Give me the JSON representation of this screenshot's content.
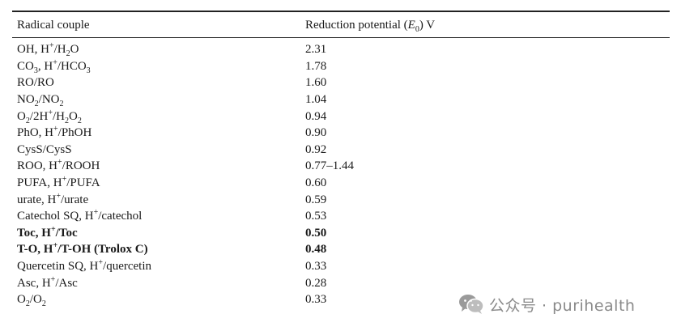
{
  "table": {
    "header": {
      "col1": "Radical couple",
      "col2_pre": "Reduction potential (",
      "col2_sym": "E",
      "col2_sub": "0",
      "col2_post": ") V"
    },
    "rows": [
      {
        "couple": [
          [
            "OH, H"
          ],
          [
            "+",
            "sup"
          ],
          [
            "/H"
          ],
          [
            "2",
            "sub"
          ],
          [
            "O"
          ]
        ],
        "value": "2.31",
        "bold": false
      },
      {
        "couple": [
          [
            "CO"
          ],
          [
            "3",
            "sub"
          ],
          [
            ", H"
          ],
          [
            "+",
            "sup"
          ],
          [
            "/HCO"
          ],
          [
            "3",
            "sub"
          ]
        ],
        "value": "1.78",
        "bold": false
      },
      {
        "couple": [
          [
            "RO/RO"
          ]
        ],
        "value": "1.60",
        "bold": false
      },
      {
        "couple": [
          [
            "NO"
          ],
          [
            "2",
            "sub"
          ],
          [
            "/NO"
          ],
          [
            "2",
            "sub"
          ]
        ],
        "value": "1.04",
        "bold": false
      },
      {
        "couple": [
          [
            "O"
          ],
          [
            "2",
            "sub"
          ],
          [
            "/2H"
          ],
          [
            "+",
            "sup"
          ],
          [
            "/H"
          ],
          [
            "2",
            "sub"
          ],
          [
            "O"
          ],
          [
            "2",
            "sub"
          ]
        ],
        "value": "0.94",
        "bold": false
      },
      {
        "couple": [
          [
            "PhO, H"
          ],
          [
            "+",
            "sup"
          ],
          [
            "/PhOH"
          ]
        ],
        "value": "0.90",
        "bold": false
      },
      {
        "couple": [
          [
            "CysS/CysS"
          ]
        ],
        "value": "0.92",
        "bold": false
      },
      {
        "couple": [
          [
            "ROO, H"
          ],
          [
            "+",
            "sup"
          ],
          [
            "/ROOH"
          ]
        ],
        "value": "0.77–1.44",
        "bold": false
      },
      {
        "couple": [
          [
            "PUFA, H"
          ],
          [
            "+",
            "sup"
          ],
          [
            "/PUFA"
          ]
        ],
        "value": "0.60",
        "bold": false
      },
      {
        "couple": [
          [
            "urate, H"
          ],
          [
            "+",
            "sup"
          ],
          [
            "/urate"
          ]
        ],
        "value": "0.59",
        "bold": false
      },
      {
        "couple": [
          [
            "Catechol SQ, H"
          ],
          [
            "+",
            "sup"
          ],
          [
            "/catechol"
          ]
        ],
        "value": "0.53",
        "bold": false
      },
      {
        "couple": [
          [
            "Toc, H"
          ],
          [
            "+",
            "sup"
          ],
          [
            "/Toc"
          ]
        ],
        "value": "0.50",
        "bold": true
      },
      {
        "couple": [
          [
            "T-O, H"
          ],
          [
            "+",
            "sup"
          ],
          [
            "/T-OH (Trolox C)"
          ]
        ],
        "value": "0.48",
        "bold": true
      },
      {
        "couple": [
          [
            "Quercetin SQ, H"
          ],
          [
            "+",
            "sup"
          ],
          [
            "/quercetin"
          ]
        ],
        "value": "0.33",
        "bold": false
      },
      {
        "couple": [
          [
            "Asc, H"
          ],
          [
            "+",
            "sup"
          ],
          [
            "/Asc"
          ]
        ],
        "value": "0.28",
        "bold": false
      },
      {
        "couple": [
          [
            "O"
          ],
          [
            "2",
            "sub"
          ],
          [
            "/O"
          ],
          [
            "2",
            "sub"
          ]
        ],
        "value": "0.33",
        "bold": false
      }
    ]
  },
  "watermark": {
    "icon": "wechat-icon",
    "text": "公众号 · purihealth"
  }
}
